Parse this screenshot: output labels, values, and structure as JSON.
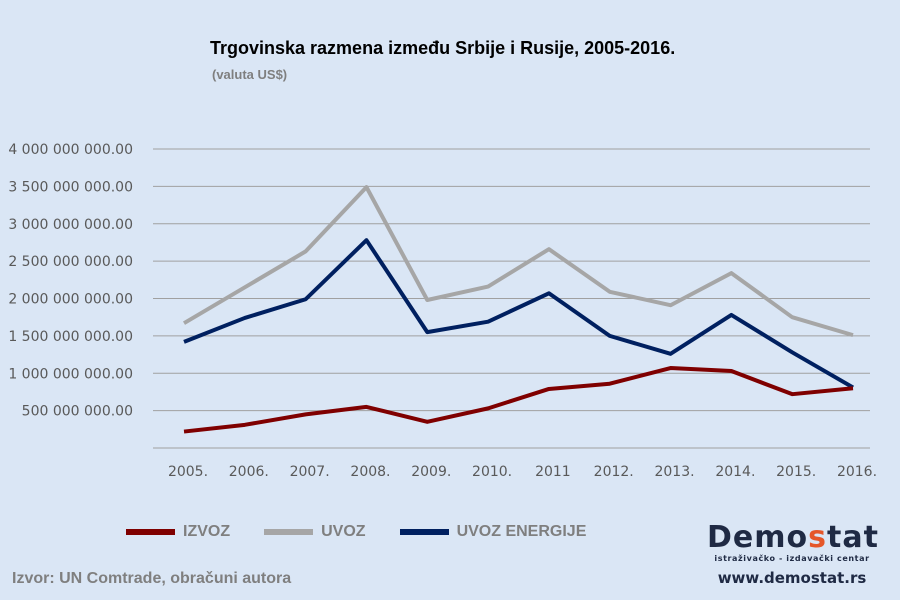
{
  "title": "Trgovinska razmena između Srbije i Rusije, 2005-2016.",
  "subtitle": "(valuta US$)",
  "source": "Izvor: UN Comtrade, obračuni autora",
  "logo": {
    "name_part1": "Demo",
    "name_accent": "s",
    "name_part2": "tat",
    "tagline": "istraživačko - izdavački centar",
    "url": "www.demostat.rs"
  },
  "legend": [
    {
      "label": "IZVOZ",
      "color": "#7f0000"
    },
    {
      "label": "UVOZ",
      "color": "#a6a6a6"
    },
    {
      "label": "UVOZ ENERGIJE",
      "color": "#002060"
    }
  ],
  "chart_data": {
    "type": "line",
    "title": "Trgovinska razmena između Srbije i Rusije, 2005-2016.",
    "subtitle": "(valuta US$)",
    "xlabel": "",
    "ylabel": "",
    "categories": [
      "2005.",
      "2006.",
      "2007.",
      "2008.",
      "2009.",
      "2010.",
      "2011",
      "2012.",
      "2013.",
      "2014.",
      "2015.",
      "2016."
    ],
    "y_tick_labels": [
      "500 000 000.00",
      "1 000 000 000.00",
      "1 500 000 000.00",
      "2 000 000 000.00",
      "2 500 000 000.00",
      "3 000 000 000.00",
      "3 500 000 000.00",
      "4 000 000 000.00"
    ],
    "y_ticks": [
      500000000,
      1000000000,
      1500000000,
      2000000000,
      2500000000,
      3000000000,
      3500000000,
      4000000000
    ],
    "ylim": [
      0,
      4000000000
    ],
    "grid": true,
    "legend_position": "bottom",
    "series": [
      {
        "name": "IZVOZ",
        "color": "#7f0000",
        "values": [
          220000000,
          310000000,
          450000000,
          550000000,
          350000000,
          530000000,
          790000000,
          860000000,
          1070000000,
          1030000000,
          720000000,
          800000000
        ]
      },
      {
        "name": "UVOZ",
        "color": "#a6a6a6",
        "values": [
          1670000000,
          2150000000,
          2630000000,
          3490000000,
          1980000000,
          2160000000,
          2660000000,
          2090000000,
          1910000000,
          2340000000,
          1750000000,
          1510000000
        ]
      },
      {
        "name": "UVOZ ENERGIJE",
        "color": "#002060",
        "values": [
          1420000000,
          1740000000,
          1990000000,
          2780000000,
          1550000000,
          1690000000,
          2070000000,
          1500000000,
          1260000000,
          1780000000,
          1280000000,
          810000000
        ]
      }
    ]
  }
}
